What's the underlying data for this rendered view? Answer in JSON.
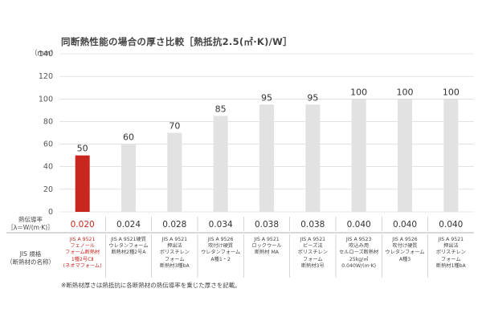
{
  "title": "同断熱性能の場合の厚さ比較［熱抵抗2.5(㎡·K)/W］",
  "y_unit": "（mm）",
  "row_labels": {
    "conductivity": [
      "熱伝導率",
      "［λ＝W/(m·K)］"
    ],
    "jis": [
      "JIS 規格",
      "（断熱材の名称）"
    ]
  },
  "note": "※断熱材厚さは熱抵抗に各断熱材の熱伝導率を乗じた厚さを記載。",
  "colors": {
    "highlight": "#c8271f",
    "bar": "#e2e2e2",
    "grid": "#d0d0d0",
    "text": "#333333"
  },
  "chart_data": {
    "type": "bar",
    "title": "同断熱性能の場合の厚さ比較［熱抵抗2.5(㎡·K)/W］",
    "ylabel": "（mm）",
    "ylim": [
      0,
      140
    ],
    "yticks": [
      0,
      20,
      40,
      60,
      80,
      100,
      120,
      140
    ],
    "grid": true,
    "values": [
      50,
      60,
      70,
      85,
      95,
      95,
      100,
      100,
      100
    ],
    "conductivity": [
      "0.020",
      "0.024",
      "0.028",
      "0.034",
      "0.038",
      "0.038",
      "0.040",
      "0.040",
      "0.040"
    ],
    "categories": [
      [
        "JIS A 9521",
        "フェノール",
        "フォーム断熱材",
        "1種2号CⅡ",
        "(ネオマフォーム)"
      ],
      [
        "JIS A 9521硬質",
        "ウレタンフォーム",
        "断熱材2種2号A"
      ],
      [
        "JIS A 9521",
        "押出法",
        "ポリスチレン",
        "フォーム",
        "断熱材3種bA"
      ],
      [
        "JIS A 9526",
        "吹付け硬質",
        "ウレタンフォーム",
        "A種1・2"
      ],
      [
        "JIS A 9521",
        "ロックウール",
        "断熱材 MA"
      ],
      [
        "JIS A 9521",
        "ビーズ法",
        "ポリスチレン",
        "フォーム",
        "断熱材3号"
      ],
      [
        "JIS A 9523",
        "吹込み用",
        "セルローズ断熱材",
        "25kg/㎥",
        "0.040W/(m·K)"
      ],
      [
        "JIS A 9526",
        "吹付け硬質",
        "ウレタンフォーム",
        "A種3"
      ],
      [
        "JIS A 9521",
        "押出法",
        "ポリスチレン",
        "フォーム",
        "断熱材1種bA"
      ]
    ],
    "highlight_index": 0
  }
}
